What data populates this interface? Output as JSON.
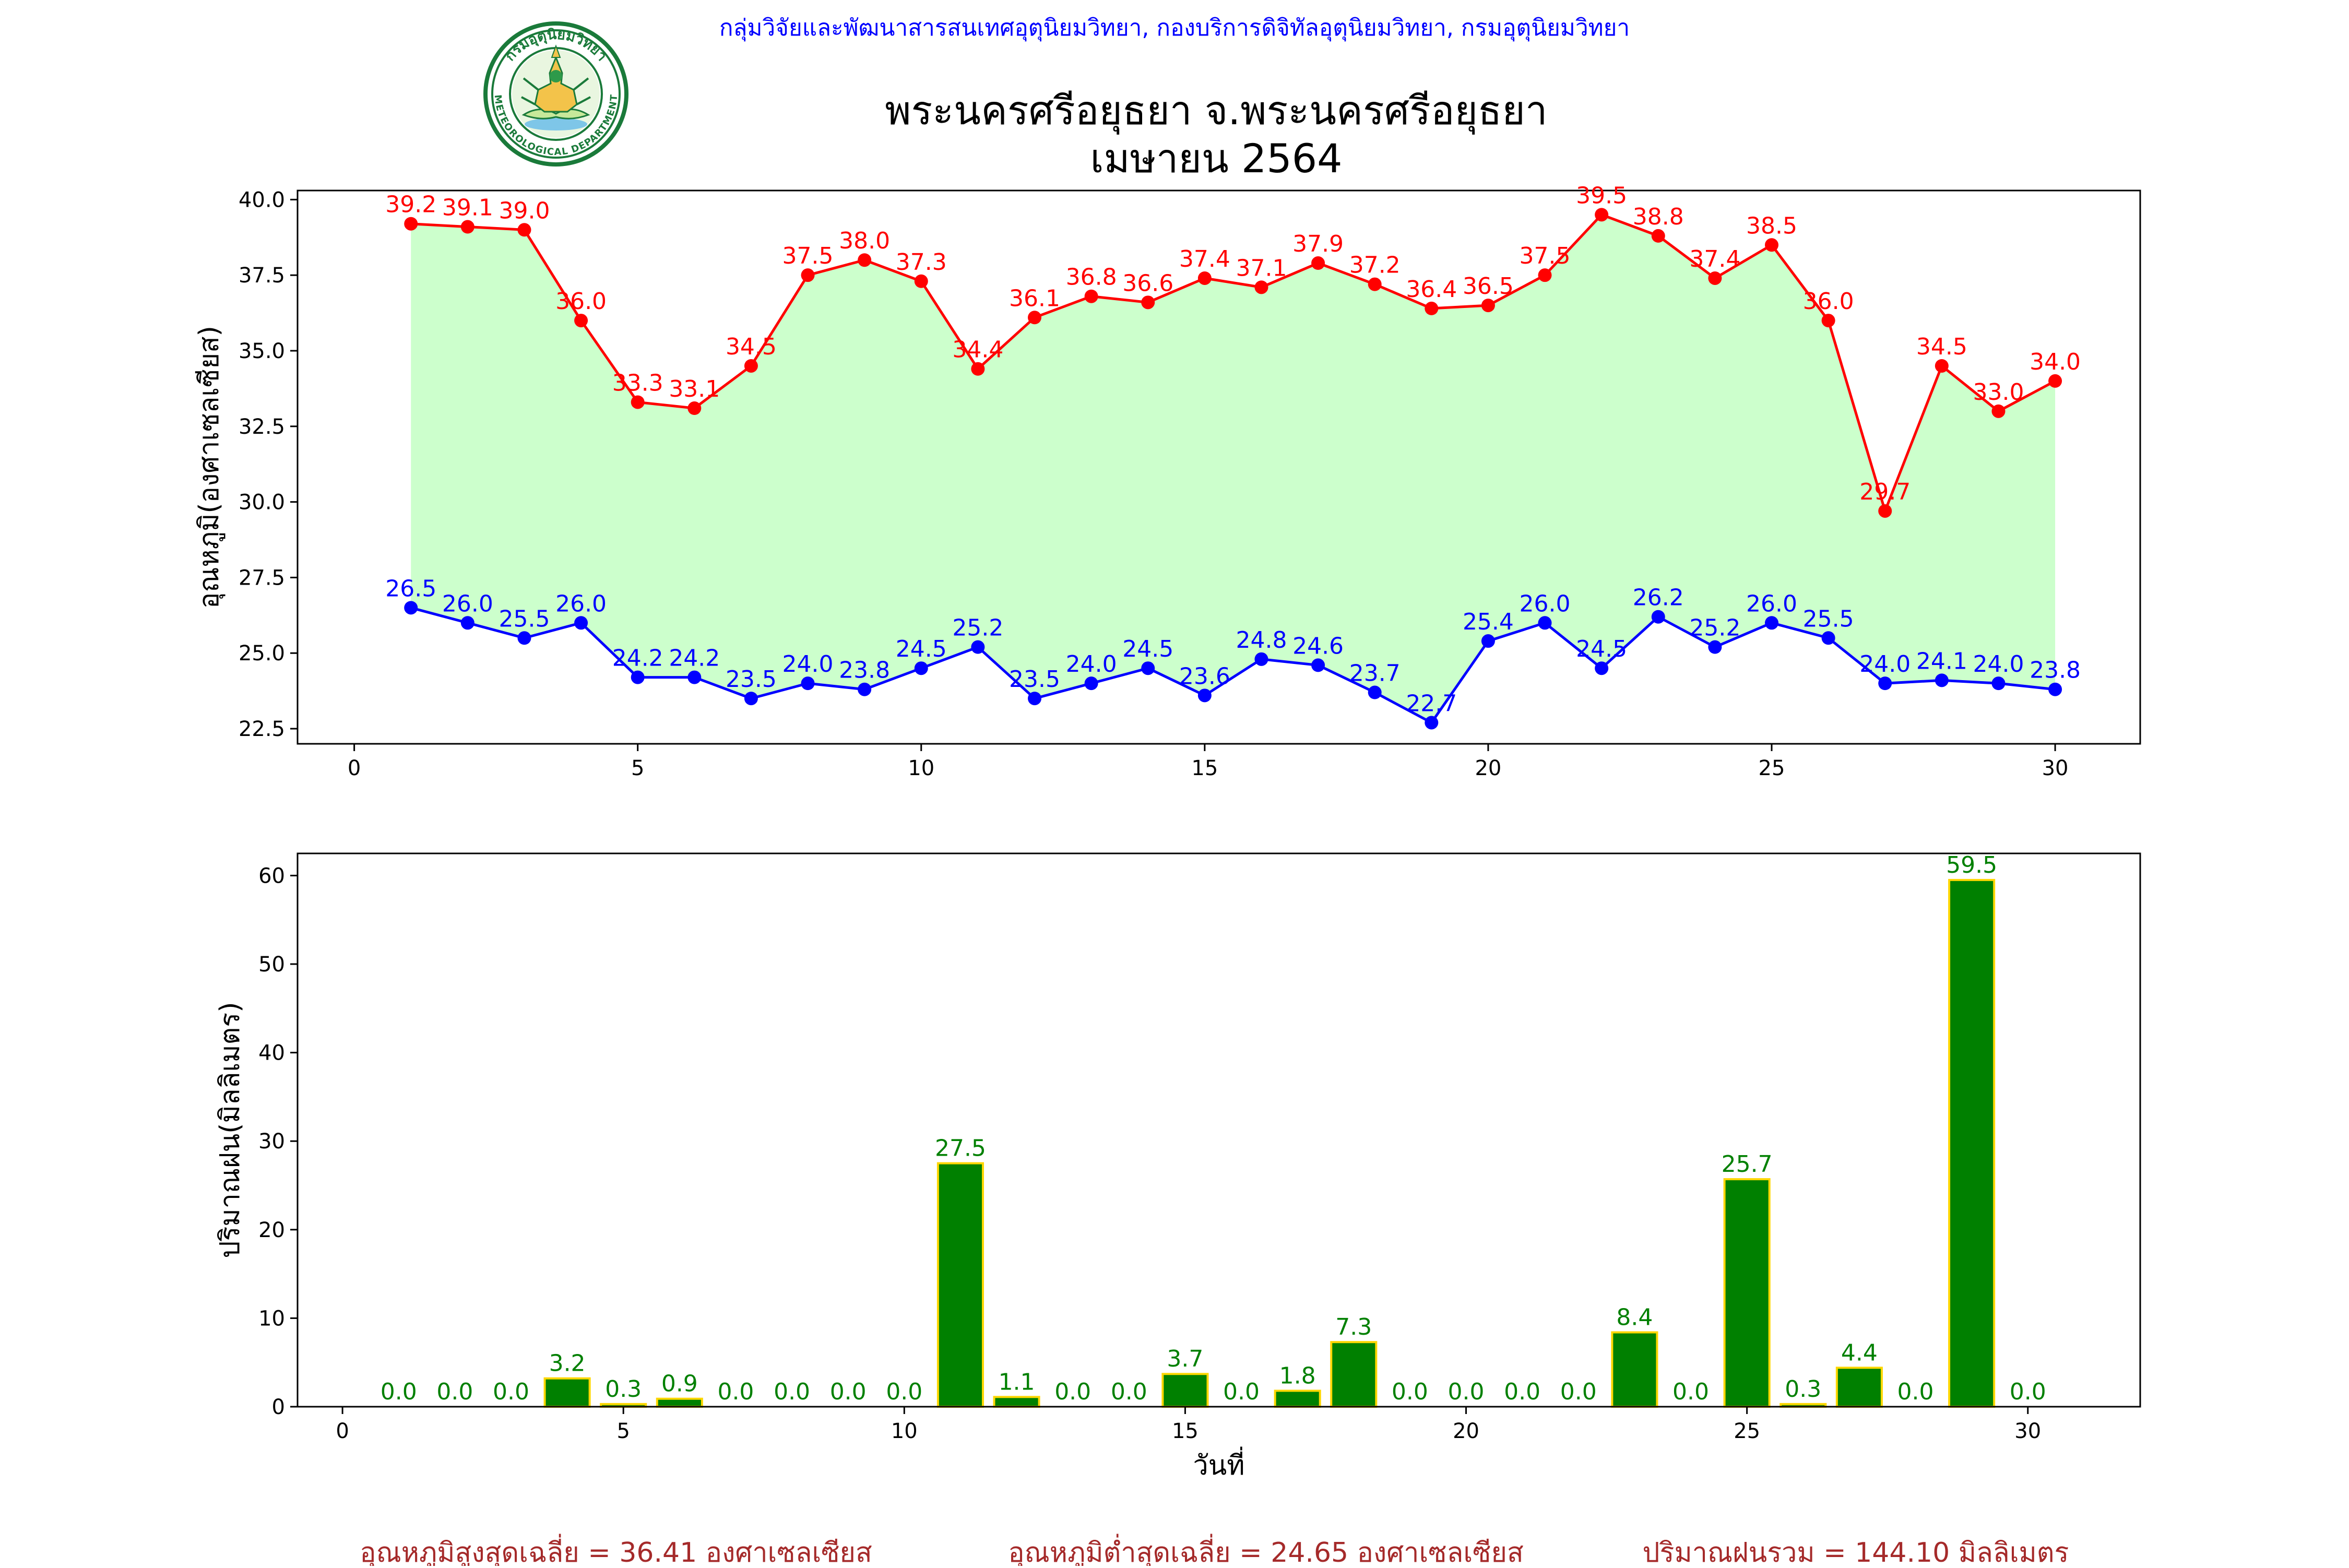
{
  "header": {
    "agency_line": "กลุ่มวิจัยและพัฒนาสารสนเทศอุตุนิยมวิทยา, กองบริการดิจิทัลอุตุนิยมวิทยา, กรมอุตุนิยมวิทยา",
    "title_line1": "พระนครศรีอยุธยา จ.พระนครศรีอยุธยา",
    "title_line2": "เมษายน 2564",
    "logo_text_top": "กรมอุตุนิยมวิทยา",
    "logo_text_bottom": "METEOROLOGICAL DEPARTMENT"
  },
  "footer": {
    "avg_max": "อุณหภูมิสูงสุดเฉลี่ย = 36.41 องศาเซลเซียส",
    "avg_min": "อุณหภูมิต่ำสุดเฉลี่ย = 24.65 องศาเซลเซียส",
    "rain_total": "ปริมาณฝนรวม = 144.10 มิลลิเมตร"
  },
  "colors": {
    "header_blue": "#0000ff",
    "max_series": "#ff0000",
    "min_series": "#0000ff",
    "band_fill": "#ccffcc",
    "rain_bar": "#008000",
    "rain_edge": "#ffd700",
    "rain_label": "#008000",
    "footer_text": "#a52a2a",
    "logo_green": "#1a7a3a"
  },
  "chart_data": [
    {
      "type": "line",
      "ylabel": "อุณหภูมิ(องศาเซลเซียส)",
      "xlim": [
        -1,
        31.5
      ],
      "ylim": [
        22.0,
        40.3
      ],
      "xticks": [
        0,
        5,
        10,
        15,
        20,
        25,
        30
      ],
      "yticks": [
        22.5,
        25.0,
        27.5,
        30.0,
        32.5,
        35.0,
        37.5,
        40.0
      ],
      "ytick_labels": [
        "22.5",
        "25.0",
        "27.5",
        "30.0",
        "32.5",
        "35.0",
        "37.5",
        "40.0"
      ],
      "x": [
        1,
        2,
        3,
        4,
        5,
        6,
        7,
        8,
        9,
        10,
        11,
        12,
        13,
        14,
        15,
        16,
        17,
        18,
        19,
        20,
        21,
        22,
        23,
        24,
        25,
        26,
        27,
        28,
        29,
        30
      ],
      "series": [
        {
          "values": [
            39.2,
            39.1,
            39.0,
            36.0,
            33.3,
            33.1,
            34.5,
            37.5,
            38.0,
            37.3,
            34.4,
            36.1,
            36.8,
            36.6,
            37.4,
            37.1,
            37.9,
            37.2,
            36.4,
            36.5,
            37.5,
            39.5,
            38.8,
            37.4,
            38.5,
            36.0,
            29.7,
            34.5,
            33.0,
            34.0
          ],
          "labels": [
            "39.2",
            "39.1",
            "39.0",
            "36.0",
            "33.3",
            "33.1",
            "34.5",
            "37.5",
            "38.0",
            "37.3",
            "34.4",
            "36.1",
            "36.8",
            "36.6",
            "37.4",
            "37.1",
            "37.9",
            "37.2",
            "36.4",
            "36.5",
            "37.5",
            "39.5",
            "38.8",
            "37.4",
            "38.5",
            "36.0",
            "29.7",
            "34.5",
            "33.0",
            "34.0"
          ]
        },
        {
          "values": [
            26.5,
            26.0,
            25.5,
            26.0,
            24.2,
            24.2,
            23.5,
            24.0,
            23.8,
            24.5,
            25.2,
            23.5,
            24.0,
            24.5,
            23.6,
            24.8,
            24.6,
            23.7,
            22.7,
            25.4,
            26.0,
            24.5,
            26.2,
            25.2,
            26.0,
            25.5,
            24.0,
            24.1,
            24.0,
            23.8
          ],
          "labels": [
            "26.5",
            "26.0",
            "25.5",
            "26.0",
            "24.2",
            "24.2",
            "23.5",
            "24.0",
            "23.8",
            "24.5",
            "25.2",
            "23.5",
            "24.0",
            "24.5",
            "23.6",
            "24.8",
            "24.6",
            "23.7",
            "22.7",
            "25.4",
            "26.0",
            "24.5",
            "26.2",
            "25.2",
            "26.0",
            "25.5",
            "24.0",
            "24.1",
            "24.0",
            "23.8"
          ]
        }
      ],
      "grid": false,
      "fill_between_series": true
    },
    {
      "type": "bar",
      "ylabel": "ปริมาณฝน(มิลลิเมตร)",
      "xlabel": "วันที่",
      "xlim": [
        -0.8,
        32.0
      ],
      "ylim": [
        0,
        62.5
      ],
      "xticks": [
        0,
        5,
        10,
        15,
        20,
        25,
        30
      ],
      "yticks": [
        0,
        10,
        20,
        30,
        40,
        50,
        60
      ],
      "x": [
        1,
        2,
        3,
        4,
        5,
        6,
        7,
        8,
        9,
        10,
        11,
        12,
        13,
        14,
        15,
        16,
        17,
        18,
        19,
        20,
        21,
        22,
        23,
        24,
        25,
        26,
        27,
        28,
        29,
        30
      ],
      "values": [
        0.0,
        0.0,
        0.0,
        3.2,
        0.3,
        0.9,
        0.0,
        0.0,
        0.0,
        0.0,
        27.5,
        1.1,
        0.0,
        0.0,
        3.7,
        0.0,
        1.8,
        7.3,
        0.0,
        0.0,
        0.0,
        0.0,
        8.4,
        0.0,
        25.7,
        0.3,
        4.4,
        0.0,
        59.5,
        0.0
      ],
      "labels": [
        "0.0",
        "0.0",
        "0.0",
        "3.2",
        "0.3",
        "0.9",
        "0.0",
        "0.0",
        "0.0",
        "0.0",
        "27.5",
        "1.1",
        "0.0",
        "0.0",
        "3.7",
        "0.0",
        "1.8",
        "7.3",
        "0.0",
        "0.0",
        "0.0",
        "0.0",
        "8.4",
        "0.0",
        "25.7",
        "0.3",
        "4.4",
        "0.0",
        "59.5",
        "0.0"
      ],
      "grid": false
    }
  ]
}
